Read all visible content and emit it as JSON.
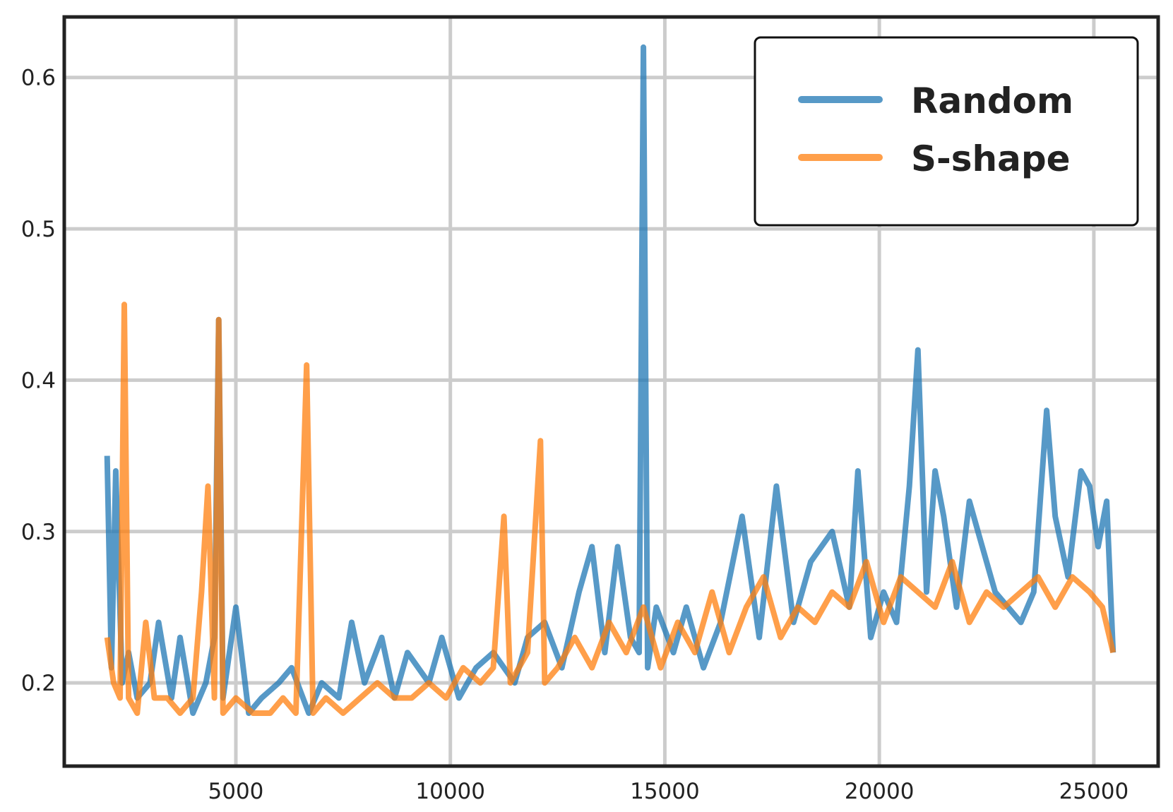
{
  "chart_data": {
    "type": "line",
    "title": "",
    "xlabel": "",
    "ylabel": "",
    "xlim": [
      1000,
      26500
    ],
    "ylim": [
      0.145,
      0.64
    ],
    "xticks": [
      5000,
      10000,
      15000,
      20000,
      25000
    ],
    "xtick_labels": [
      "5000",
      "10000",
      "15000",
      "20000",
      "25000"
    ],
    "yticks": [
      0.2,
      0.3,
      0.4,
      0.5,
      0.6
    ],
    "ytick_labels": [
      "0.2",
      "0.3",
      "0.4",
      "0.5",
      "0.6"
    ],
    "grid": true,
    "legend_position": "top-right",
    "series": [
      {
        "name": "Random",
        "color": "#1f77b4",
        "x": [
          2000,
          2100,
          2200,
          2350,
          2500,
          2700,
          3000,
          3200,
          3500,
          3700,
          4000,
          4300,
          4500,
          4600,
          4700,
          5000,
          5300,
          5600,
          6000,
          6300,
          6700,
          7000,
          7400,
          7700,
          8000,
          8400,
          8700,
          9000,
          9500,
          9800,
          10200,
          10600,
          11000,
          11500,
          11800,
          12200,
          12600,
          13000,
          13300,
          13600,
          13900,
          14200,
          14400,
          14500,
          14600,
          14800,
          15200,
          15500,
          15900,
          16300,
          16800,
          17200,
          17600,
          18000,
          18400,
          18900,
          19300,
          19500,
          19800,
          20100,
          20400,
          20700,
          20900,
          21100,
          21300,
          21500,
          21800,
          22100,
          22400,
          22700,
          23000,
          23300,
          23600,
          23900,
          24100,
          24400,
          24700,
          24900,
          25100,
          25300,
          25450
        ],
        "y": [
          0.35,
          0.21,
          0.34,
          0.2,
          0.22,
          0.19,
          0.2,
          0.24,
          0.19,
          0.23,
          0.18,
          0.2,
          0.23,
          0.44,
          0.19,
          0.25,
          0.18,
          0.19,
          0.2,
          0.21,
          0.18,
          0.2,
          0.19,
          0.24,
          0.2,
          0.23,
          0.19,
          0.22,
          0.2,
          0.23,
          0.19,
          0.21,
          0.22,
          0.2,
          0.23,
          0.24,
          0.21,
          0.26,
          0.29,
          0.22,
          0.29,
          0.23,
          0.22,
          0.62,
          0.21,
          0.25,
          0.22,
          0.25,
          0.21,
          0.24,
          0.31,
          0.23,
          0.33,
          0.24,
          0.28,
          0.3,
          0.25,
          0.34,
          0.23,
          0.26,
          0.24,
          0.33,
          0.42,
          0.26,
          0.34,
          0.31,
          0.25,
          0.32,
          0.29,
          0.26,
          0.25,
          0.24,
          0.26,
          0.38,
          0.31,
          0.27,
          0.34,
          0.33,
          0.29,
          0.32,
          0.22
        ]
      },
      {
        "name": "S-shape",
        "color": "#ff7f0e",
        "x": [
          2000,
          2150,
          2300,
          2400,
          2500,
          2700,
          2900,
          3100,
          3400,
          3700,
          4000,
          4200,
          4350,
          4500,
          4600,
          4700,
          5000,
          5400,
          5800,
          6100,
          6400,
          6650,
          6800,
          7100,
          7500,
          7900,
          8300,
          8700,
          9100,
          9500,
          9900,
          10300,
          10700,
          11000,
          11250,
          11400,
          11800,
          12100,
          12200,
          12500,
          12900,
          13300,
          13700,
          14100,
          14500,
          14900,
          15300,
          15700,
          16100,
          16500,
          16900,
          17300,
          17700,
          18100,
          18500,
          18900,
          19300,
          19700,
          20100,
          20500,
          20900,
          21300,
          21700,
          22100,
          22500,
          22900,
          23300,
          23700,
          24100,
          24500,
          24900,
          25200,
          25450
        ],
        "y": [
          0.23,
          0.2,
          0.19,
          0.45,
          0.19,
          0.18,
          0.24,
          0.19,
          0.19,
          0.18,
          0.19,
          0.26,
          0.33,
          0.19,
          0.44,
          0.18,
          0.19,
          0.18,
          0.18,
          0.19,
          0.18,
          0.41,
          0.18,
          0.19,
          0.18,
          0.19,
          0.2,
          0.19,
          0.19,
          0.2,
          0.19,
          0.21,
          0.2,
          0.21,
          0.31,
          0.2,
          0.22,
          0.36,
          0.2,
          0.21,
          0.23,
          0.21,
          0.24,
          0.22,
          0.25,
          0.21,
          0.24,
          0.22,
          0.26,
          0.22,
          0.25,
          0.27,
          0.23,
          0.25,
          0.24,
          0.26,
          0.25,
          0.28,
          0.24,
          0.27,
          0.26,
          0.25,
          0.28,
          0.24,
          0.26,
          0.25,
          0.26,
          0.27,
          0.25,
          0.27,
          0.26,
          0.25,
          0.22
        ]
      }
    ]
  }
}
